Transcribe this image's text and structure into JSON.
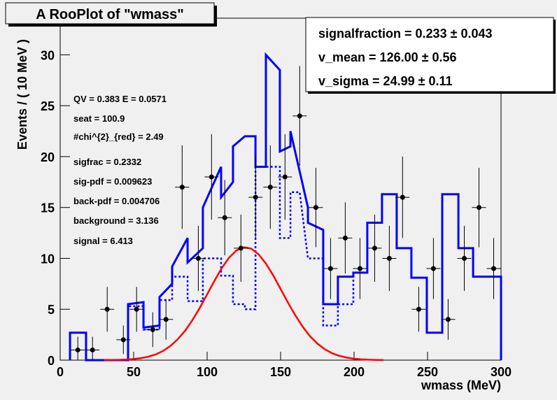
{
  "chart_data": {
    "type": "line",
    "title": "A RooPlot of \"wmass\"",
    "x_label": "wmass (MeV)",
    "y_label": "Events / ( 10 MeV )",
    "xlim": [
      0,
      300
    ],
    "xticks": [
      0,
      50,
      100,
      150,
      200,
      250,
      300
    ],
    "ylim": [
      0,
      33.6
    ],
    "yticks": [
      0,
      5,
      10,
      15,
      20,
      25,
      30
    ],
    "annotations": [
      "QV = 0.383 E = 0.0571",
      "seat = 100.9",
      "#chi^{2}_{red} = 2.49",
      "sigfrac = 0.2332",
      "sig-pdf = 0.009623",
      "back-pdf = 0.004706",
      "background = 3.136",
      "signal = 6.413"
    ],
    "stats": [
      "signalfraction =  0.233 ± 0.043",
      "v_mean =  126.00 ± 0.56",
      "v_sigma =  24.99 ± 0.11"
    ],
    "series": [
      {
        "style": "solid",
        "color": "#0000ff",
        "x": [
          6.7,
          6.7,
          17.6,
          17.6,
          46.2,
          46.2,
          56.7,
          56.7,
          67.6,
          67.6,
          76.2,
          76.2,
          86.7,
          86.7,
          97.1,
          97.1,
          109.5,
          109.5,
          117.6,
          117.6,
          125.7,
          132.9,
          132.9,
          140,
          140,
          149.5,
          149.5,
          156.7,
          156.7,
          168.6,
          168.6,
          179,
          179,
          189,
          189,
          199.5,
          199.5,
          209,
          209,
          219,
          219,
          229,
          229,
          239,
          239,
          249.5,
          249.5,
          260,
          260,
          271,
          271,
          281,
          281,
          300,
          300
        ],
        "values": [
          0,
          2.7,
          2.7,
          0,
          0,
          5.5,
          5.7,
          3.2,
          3.4,
          6.2,
          7.5,
          9.2,
          12,
          9.6,
          11,
          15,
          19,
          16,
          17.5,
          21,
          22,
          22,
          19,
          19,
          30,
          28.5,
          20.5,
          21,
          22.5,
          15,
          13.5,
          12.8,
          5.5,
          5.5,
          8.2,
          8.2,
          8.6,
          8.6,
          13.5,
          13.5,
          16.3,
          16.3,
          11,
          11,
          8.1,
          8.1,
          2.7,
          2.7,
          16.3,
          16.3,
          11,
          11,
          8.2,
          8.2,
          0
        ]
      },
      {
        "style": "dotted",
        "color": "#0000ff",
        "x": [
          6.7,
          6.7,
          17.6,
          17.6,
          46.2,
          46.2,
          56.7,
          56.7,
          67.6,
          67.6,
          76.2,
          76.2,
          86.7,
          86.7,
          97.1,
          97.1,
          109.5,
          109.5,
          117.6,
          117.6,
          125.7,
          125.7,
          132.9,
          132.9,
          149.5,
          149.5,
          156.7,
          156.7,
          163,
          168.6,
          179,
          179,
          189,
          189,
          199.5,
          199.5,
          209
        ],
        "values": [
          0,
          2.7,
          2.7,
          0,
          0,
          5.3,
          5.3,
          3,
          3,
          5.9,
          5.9,
          8.2,
          8.2,
          5.8,
          5.8,
          10,
          10,
          8.3,
          8.3,
          5.5,
          5.5,
          5,
          5,
          19,
          19,
          12,
          12,
          16.5,
          16.5,
          10,
          10,
          3.4,
          3.4,
          5.5,
          5.5,
          8.6,
          8.6
        ]
      },
      {
        "style": "curve",
        "color": "#ff0000",
        "x": [
          30,
          35,
          40,
          45,
          50,
          55,
          60,
          65,
          70,
          75,
          80,
          85,
          90,
          95,
          100,
          105,
          110,
          115,
          120,
          125,
          130,
          135,
          140,
          145,
          150,
          155,
          160,
          165,
          170,
          175,
          180,
          185,
          190,
          195,
          200,
          205,
          210,
          215,
          220
        ],
        "values": [
          0.01,
          0.015,
          0.03,
          0.058,
          0.11,
          0.2,
          0.34,
          0.56,
          0.9,
          1.39,
          2.05,
          2.89,
          3.93,
          5.14,
          6.46,
          7.8,
          9.05,
          10.08,
          10.78,
          11.09,
          10.96,
          10.4,
          9.49,
          8.32,
          6.99,
          5.66,
          4.41,
          3.29,
          2.35,
          1.63,
          1.08,
          0.68,
          0.42,
          0.25,
          0.14,
          0.08,
          0.04,
          0.02,
          0.01
        ]
      },
      {
        "style": "points",
        "color": "#000000",
        "x": [
          12,
          22,
          32,
          43,
          52,
          63,
          72,
          83,
          94,
          103,
          112,
          123,
          133,
          143,
          153,
          163,
          174,
          184,
          194,
          204,
          214,
          224,
          233,
          244,
          254,
          264,
          275,
          285,
          295
        ],
        "values": [
          1,
          1,
          5,
          2,
          5,
          3,
          4,
          17,
          10,
          18,
          14,
          11,
          16,
          17,
          18,
          24,
          15,
          9,
          12,
          9,
          11,
          10,
          16,
          5,
          9,
          4,
          10,
          15,
          9
        ],
        "errors": [
          1.3,
          1.3,
          2.2,
          1.4,
          2.2,
          1.7,
          2,
          4.1,
          3.2,
          4.2,
          3.7,
          3.3,
          4,
          4.1,
          4.2,
          4.9,
          3.9,
          3,
          3.5,
          3,
          3.3,
          3.2,
          4,
          2.2,
          3,
          2,
          3.2,
          3.9,
          3
        ]
      }
    ]
  }
}
